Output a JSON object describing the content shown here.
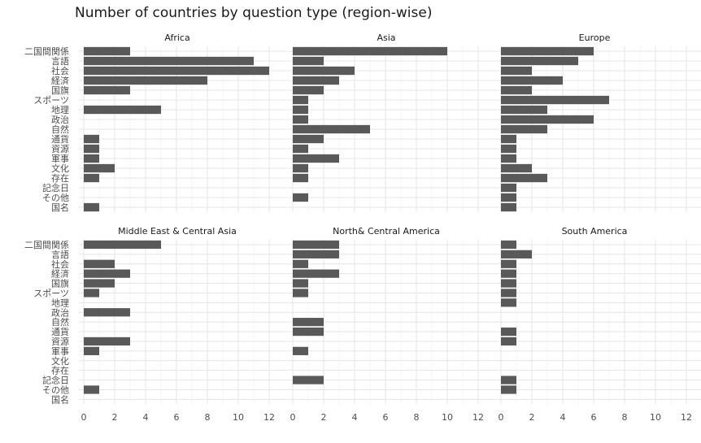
{
  "chart_data": {
    "type": "bar",
    "orientation": "horizontal",
    "title": "Number of countries by question type (region-wise)",
    "xlim": [
      0,
      12
    ],
    "xticks": [
      0,
      2,
      4,
      6,
      8,
      10,
      12
    ],
    "categories": [
      "二国間関係",
      "言語",
      "社会",
      "経済",
      "国旗",
      "スポーツ",
      "地理",
      "政治",
      "自然",
      "通貨",
      "資源",
      "軍事",
      "文化",
      "存在",
      "記念日",
      "その他",
      "国名"
    ],
    "grid": true,
    "facets": [
      {
        "name": "Africa",
        "values": [
          3,
          11,
          12,
          8,
          3,
          0,
          5,
          0,
          0,
          1,
          1,
          1,
          2,
          1,
          0,
          0,
          1
        ]
      },
      {
        "name": "Asia",
        "values": [
          10,
          2,
          4,
          3,
          2,
          1,
          1,
          1,
          5,
          2,
          1,
          3,
          1,
          1,
          0,
          1,
          0
        ]
      },
      {
        "name": "Europe",
        "values": [
          6,
          5,
          2,
          4,
          2,
          7,
          3,
          6,
          3,
          1,
          1,
          1,
          2,
          3,
          1,
          1,
          1
        ]
      },
      {
        "name": "Middle East & Central Asia",
        "values": [
          5,
          0,
          2,
          3,
          2,
          1,
          0,
          3,
          0,
          0,
          3,
          1,
          0,
          0,
          0,
          1,
          0
        ]
      },
      {
        "name": "North& Central America",
        "values": [
          3,
          3,
          1,
          3,
          1,
          1,
          0,
          0,
          2,
          2,
          0,
          1,
          0,
          0,
          2,
          0,
          0
        ]
      },
      {
        "name": "South America",
        "values": [
          1,
          2,
          1,
          1,
          1,
          1,
          1,
          0,
          0,
          1,
          1,
          0,
          0,
          0,
          1,
          1,
          0
        ]
      }
    ]
  }
}
